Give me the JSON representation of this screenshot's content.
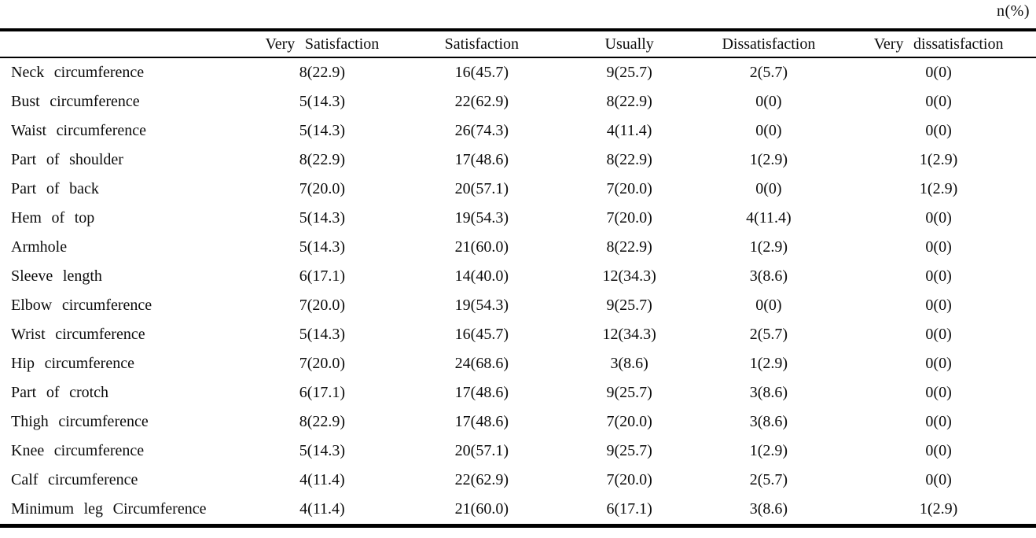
{
  "unit_label": "n(%)",
  "table": {
    "columns": [
      "",
      "Very Satisfaction",
      "Satisfaction",
      "Usually",
      "Dissatisfaction",
      "Very dissatisfaction"
    ],
    "rows": [
      {
        "label": "Neck circumference",
        "values": [
          "8(22.9)",
          "16(45.7)",
          "9(25.7)",
          "2(5.7)",
          "0(0)"
        ]
      },
      {
        "label": "Bust circumference",
        "values": [
          "5(14.3)",
          "22(62.9)",
          "8(22.9)",
          "0(0)",
          "0(0)"
        ]
      },
      {
        "label": "Waist circumference",
        "values": [
          "5(14.3)",
          "26(74.3)",
          "4(11.4)",
          "0(0)",
          "0(0)"
        ]
      },
      {
        "label": "Part of shoulder",
        "values": [
          "8(22.9)",
          "17(48.6)",
          "8(22.9)",
          "1(2.9)",
          "1(2.9)"
        ]
      },
      {
        "label": "Part of back",
        "values": [
          "7(20.0)",
          "20(57.1)",
          "7(20.0)",
          "0(0)",
          "1(2.9)"
        ]
      },
      {
        "label": "Hem of top",
        "values": [
          "5(14.3)",
          "19(54.3)",
          "7(20.0)",
          "4(11.4)",
          "0(0)"
        ]
      },
      {
        "label": "Armhole",
        "values": [
          "5(14.3)",
          "21(60.0)",
          "8(22.9)",
          "1(2.9)",
          "0(0)"
        ]
      },
      {
        "label": "Sleeve length",
        "values": [
          "6(17.1)",
          "14(40.0)",
          "12(34.3)",
          "3(8.6)",
          "0(0)"
        ]
      },
      {
        "label": "Elbow circumference",
        "values": [
          "7(20.0)",
          "19(54.3)",
          "9(25.7)",
          "0(0)",
          "0(0)"
        ]
      },
      {
        "label": "Wrist circumference",
        "values": [
          "5(14.3)",
          "16(45.7)",
          "12(34.3)",
          "2(5.7)",
          "0(0)"
        ]
      },
      {
        "label": "Hip circumference",
        "values": [
          "7(20.0)",
          "24(68.6)",
          "3(8.6)",
          "1(2.9)",
          "0(0)"
        ]
      },
      {
        "label": "Part of crotch",
        "values": [
          "6(17.1)",
          "17(48.6)",
          "9(25.7)",
          "3(8.6)",
          "0(0)"
        ]
      },
      {
        "label": "Thigh circumference",
        "values": [
          "8(22.9)",
          "17(48.6)",
          "7(20.0)",
          "3(8.6)",
          "0(0)"
        ]
      },
      {
        "label": "Knee circumference",
        "values": [
          "5(14.3)",
          "20(57.1)",
          "9(25.7)",
          "1(2.9)",
          "0(0)"
        ]
      },
      {
        "label": "Calf circumference",
        "values": [
          "4(11.4)",
          "22(62.9)",
          "7(20.0)",
          "2(5.7)",
          "0(0)"
        ]
      },
      {
        "label": "Minimum leg Circumference",
        "values": [
          "4(11.4)",
          "21(60.0)",
          "6(17.1)",
          "3(8.6)",
          "1(2.9)"
        ]
      }
    ]
  }
}
